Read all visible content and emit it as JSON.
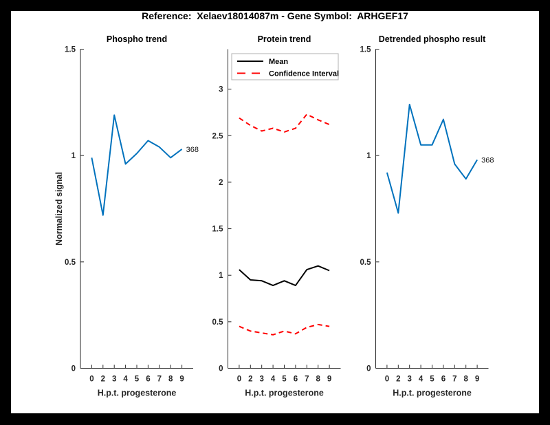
{
  "figure": {
    "title": "Reference:  Xelaev18014087m - Gene Symbol:  ARHGEF17",
    "axis_color": "#262626",
    "background": "#ffffff",
    "border_color": "#000000"
  },
  "chart_data": [
    {
      "type": "line",
      "title": "Phospho trend",
      "xlabel": "H.p.t. progesterone",
      "ylabel": "Normalized signal",
      "x_tick_labels": [
        "0",
        "2",
        "3",
        "4",
        "5",
        "6",
        "7",
        "8",
        "9"
      ],
      "ylim": [
        0,
        1.5
      ],
      "yticks": [
        0,
        0.5,
        1,
        1.5
      ],
      "grid": false,
      "series": [
        {
          "name": "phospho-signal",
          "color": "#0072BD",
          "style": "solid",
          "values": [
            0.99,
            0.72,
            1.19,
            0.96,
            1.01,
            1.07,
            1.04,
            0.99,
            1.03
          ]
        }
      ],
      "end_label": "368"
    },
    {
      "type": "line",
      "title": "Protein trend",
      "xlabel": "H.p.t. progesterone",
      "ylabel": "",
      "x_tick_labels": [
        "0",
        "2",
        "3",
        "4",
        "5",
        "6",
        "7",
        "8",
        "9"
      ],
      "ylim": [
        0,
        3.43
      ],
      "yticks": [
        0,
        0.5,
        1,
        1.5,
        2,
        2.5,
        3
      ],
      "grid": false,
      "legend": {
        "position": "top-left",
        "entries": [
          {
            "label": "Mean",
            "color": "#000000",
            "style": "solid"
          },
          {
            "label": "Confidence Interval",
            "color": "#FF0000",
            "style": "dashed"
          }
        ]
      },
      "series": [
        {
          "name": "mean",
          "color": "#000000",
          "style": "solid",
          "values": [
            1.06,
            0.95,
            0.94,
            0.89,
            0.94,
            0.89,
            1.06,
            1.1,
            1.05
          ]
        },
        {
          "name": "confidence-interval-upper",
          "color": "#FF0000",
          "style": "dashed",
          "values": [
            2.69,
            2.61,
            2.55,
            2.58,
            2.54,
            2.58,
            2.73,
            2.67,
            2.62
          ]
        },
        {
          "name": "confidence-interval-lower",
          "color": "#FF0000",
          "style": "dashed",
          "values": [
            0.45,
            0.4,
            0.38,
            0.36,
            0.4,
            0.37,
            0.44,
            0.47,
            0.45
          ]
        }
      ]
    },
    {
      "type": "line",
      "title": "Detrended phospho result",
      "xlabel": "H.p.t. progesterone",
      "ylabel": "",
      "x_tick_labels": [
        "0",
        "2",
        "3",
        "4",
        "5",
        "6",
        "7",
        "8",
        "9"
      ],
      "ylim": [
        0,
        1.5
      ],
      "yticks": [
        0,
        0.5,
        1,
        1.5
      ],
      "grid": false,
      "series": [
        {
          "name": "detrended-phospho",
          "color": "#0072BD",
          "style": "solid",
          "values": [
            0.92,
            0.73,
            1.24,
            1.05,
            1.05,
            1.17,
            0.96,
            0.89,
            0.98
          ]
        }
      ],
      "end_label": "368"
    }
  ]
}
